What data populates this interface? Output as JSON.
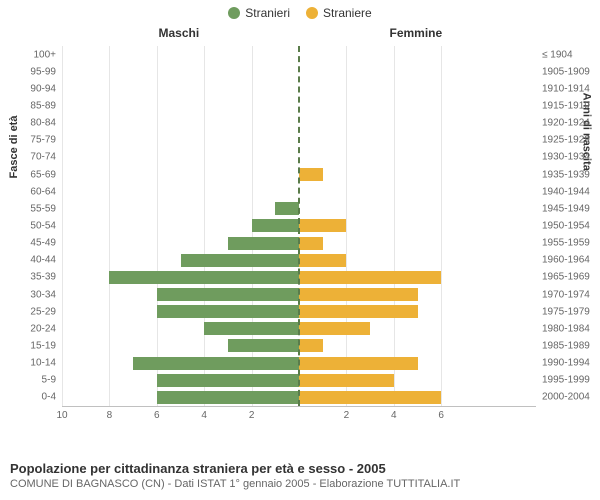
{
  "chart": {
    "type": "population-pyramid",
    "legend": {
      "items": [
        {
          "label": "Stranieri",
          "color": "#6f9c5e"
        },
        {
          "label": "Straniere",
          "color": "#edb137"
        }
      ]
    },
    "headers": {
      "left": "Maschi",
      "right": "Femmine"
    },
    "y_left_title": "Fasce di età",
    "y_right_title": "Anni di nascita",
    "x_max": 10,
    "x_ticks_left": [
      10,
      8,
      6,
      4,
      2
    ],
    "x_ticks_right": [
      2,
      4,
      6
    ],
    "grid_color": "#e6e6e6",
    "axis_color": "#c0c0c0",
    "center_line_color": "#5a7c4a",
    "background_color": "#ffffff",
    "label_color": "#666666",
    "header_color": "#333333",
    "bar_gap_pct": 12,
    "age_bins": [
      {
        "age": "100+",
        "birth": "≤ 1904",
        "m": 0,
        "f": 0
      },
      {
        "age": "95-99",
        "birth": "1905-1909",
        "m": 0,
        "f": 0
      },
      {
        "age": "90-94",
        "birth": "1910-1914",
        "m": 0,
        "f": 0
      },
      {
        "age": "85-89",
        "birth": "1915-1919",
        "m": 0,
        "f": 0
      },
      {
        "age": "80-84",
        "birth": "1920-1924",
        "m": 0,
        "f": 0
      },
      {
        "age": "75-79",
        "birth": "1925-1929",
        "m": 0,
        "f": 0
      },
      {
        "age": "70-74",
        "birth": "1930-1934",
        "m": 0,
        "f": 0
      },
      {
        "age": "65-69",
        "birth": "1935-1939",
        "m": 0,
        "f": 1
      },
      {
        "age": "60-64",
        "birth": "1940-1944",
        "m": 0,
        "f": 0
      },
      {
        "age": "55-59",
        "birth": "1945-1949",
        "m": 1,
        "f": 0
      },
      {
        "age": "50-54",
        "birth": "1950-1954",
        "m": 2,
        "f": 2
      },
      {
        "age": "45-49",
        "birth": "1955-1959",
        "m": 3,
        "f": 1
      },
      {
        "age": "40-44",
        "birth": "1960-1964",
        "m": 5,
        "f": 2
      },
      {
        "age": "35-39",
        "birth": "1965-1969",
        "m": 8,
        "f": 6
      },
      {
        "age": "30-34",
        "birth": "1970-1974",
        "m": 6,
        "f": 5
      },
      {
        "age": "25-29",
        "birth": "1975-1979",
        "m": 6,
        "f": 5
      },
      {
        "age": "20-24",
        "birth": "1980-1984",
        "m": 4,
        "f": 3
      },
      {
        "age": "15-19",
        "birth": "1985-1989",
        "m": 3,
        "f": 1
      },
      {
        "age": "10-14",
        "birth": "1990-1994",
        "m": 7,
        "f": 5
      },
      {
        "age": "5-9",
        "birth": "1995-1999",
        "m": 6,
        "f": 4
      },
      {
        "age": "0-4",
        "birth": "2000-2004",
        "m": 6,
        "f": 6
      }
    ]
  },
  "caption": {
    "title": "Popolazione per cittadinanza straniera per età e sesso - 2005",
    "subtitle": "COMUNE DI BAGNASCO (CN) - Dati ISTAT 1° gennaio 2005 - Elaborazione TUTTITALIA.IT"
  }
}
